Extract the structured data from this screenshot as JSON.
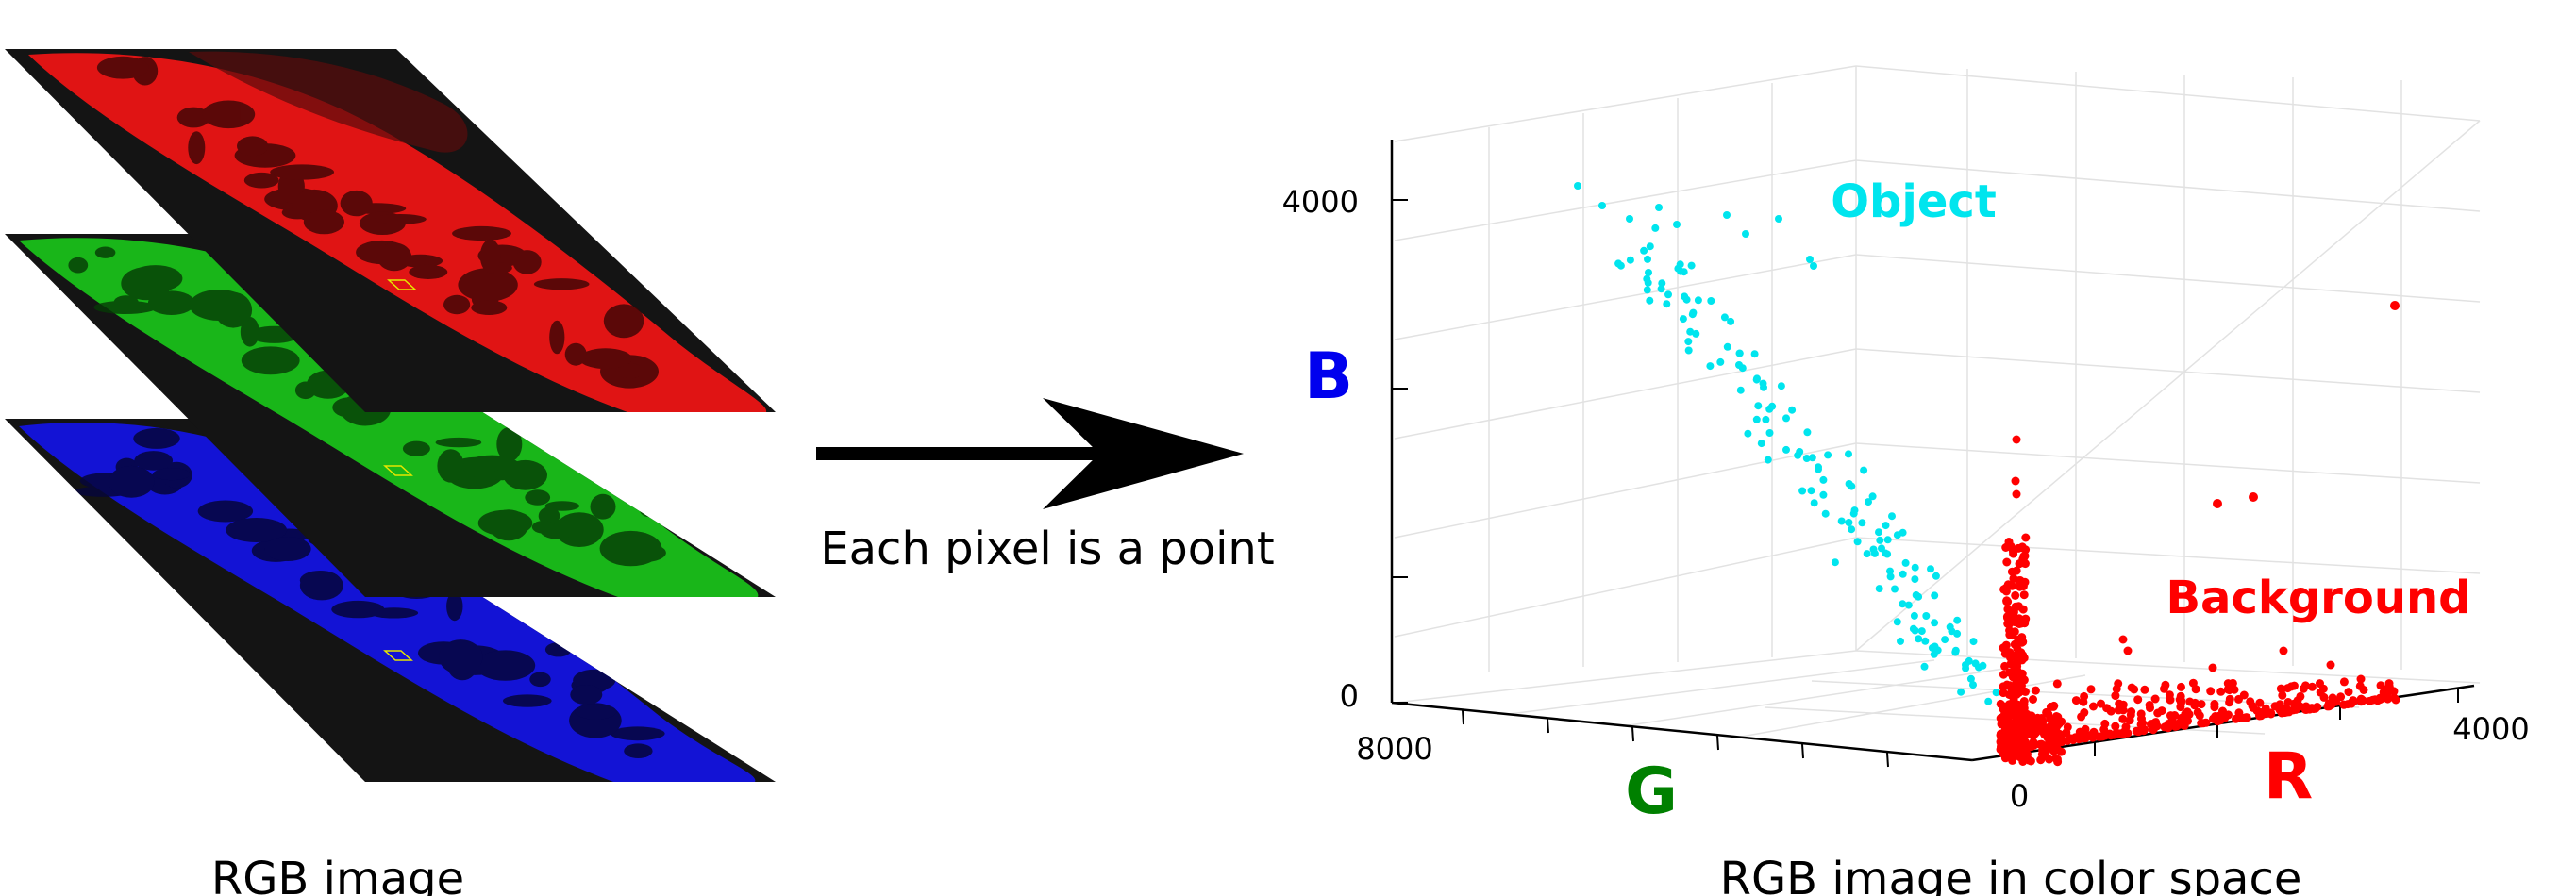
{
  "left": {
    "caption": "RGB image",
    "layers": [
      {
        "channel": "red",
        "color": "#ff1a1a"
      },
      {
        "channel": "green",
        "color": "#1fd11f"
      },
      {
        "channel": "blue",
        "color": "#1a1aff"
      }
    ],
    "pixel_marker_color": "#e6e600"
  },
  "middle": {
    "arrow_label": "Each pixel is a point"
  },
  "right": {
    "caption": "RGB image in color space",
    "cluster_labels": {
      "object": "Object",
      "background": "Background"
    },
    "axis_labels": {
      "b": "B",
      "g": "G",
      "r": "R"
    },
    "tick_labels": {
      "b_max": "4000",
      "b_zero": "0",
      "g_max": "8000",
      "r_zero": "0",
      "r_max": "4000"
    },
    "colors": {
      "object": "#00e5ee",
      "background": "#ff0000",
      "b_label": "#0000ee",
      "g_label": "#008000",
      "r_label": "#ff0000",
      "grid": "#e2e2e2"
    }
  }
}
